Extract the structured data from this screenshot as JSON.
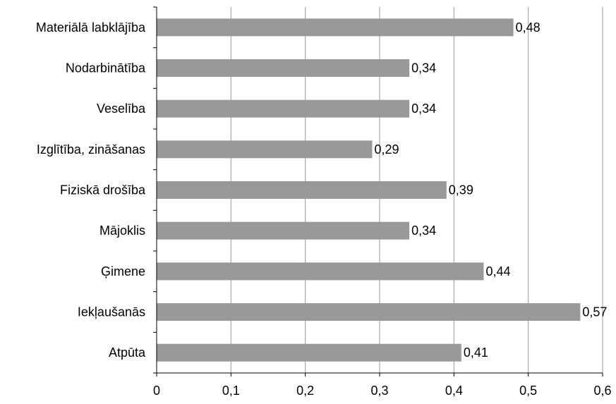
{
  "chart_data": {
    "type": "bar",
    "orientation": "horizontal",
    "categories": [
      "Materiālā labklājība",
      "Nodarbinātība",
      "Veselība",
      "Izglītība, zināšanas",
      "Fiziskā drošība",
      "Mājoklis",
      "Ģimene",
      "Iekļaušanās",
      "Atpūta"
    ],
    "values": [
      0.48,
      0.34,
      0.34,
      0.29,
      0.39,
      0.34,
      0.44,
      0.57,
      0.41
    ],
    "value_labels": [
      "0,48",
      "0,34",
      "0,34",
      "0,29",
      "0,39",
      "0,34",
      "0,44",
      "0,57",
      "0,41"
    ],
    "xlim": [
      0,
      0.6
    ],
    "x_ticks": [
      0,
      0.1,
      0.2,
      0.3,
      0.4,
      0.5,
      0.6
    ],
    "x_tick_labels": [
      "0",
      "0,1",
      "0,2",
      "0,3",
      "0,4",
      "0,5",
      "0,6"
    ],
    "grid": "vertical",
    "legend": "none",
    "colors": {
      "bar": "#999999",
      "grid": "#9a9a9a",
      "axis": "#000000"
    }
  }
}
